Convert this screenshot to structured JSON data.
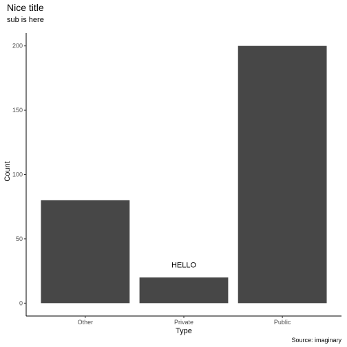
{
  "chart_data": {
    "type": "bar",
    "title": "Nice title",
    "subtitle": "sub is here",
    "caption": "Source: imaginary",
    "xlabel": "Type",
    "ylabel": "Count",
    "categories": [
      "Other",
      "Private",
      "Public"
    ],
    "values": [
      80,
      20,
      200
    ],
    "yticks": [
      "0",
      "50",
      "100",
      "150",
      "200"
    ],
    "ylim": [
      -10,
      210
    ],
    "grid": false,
    "bar_color": "#474747",
    "annotations": [
      {
        "text": "HELLO",
        "category": "Private",
        "y": 30
      }
    ]
  }
}
